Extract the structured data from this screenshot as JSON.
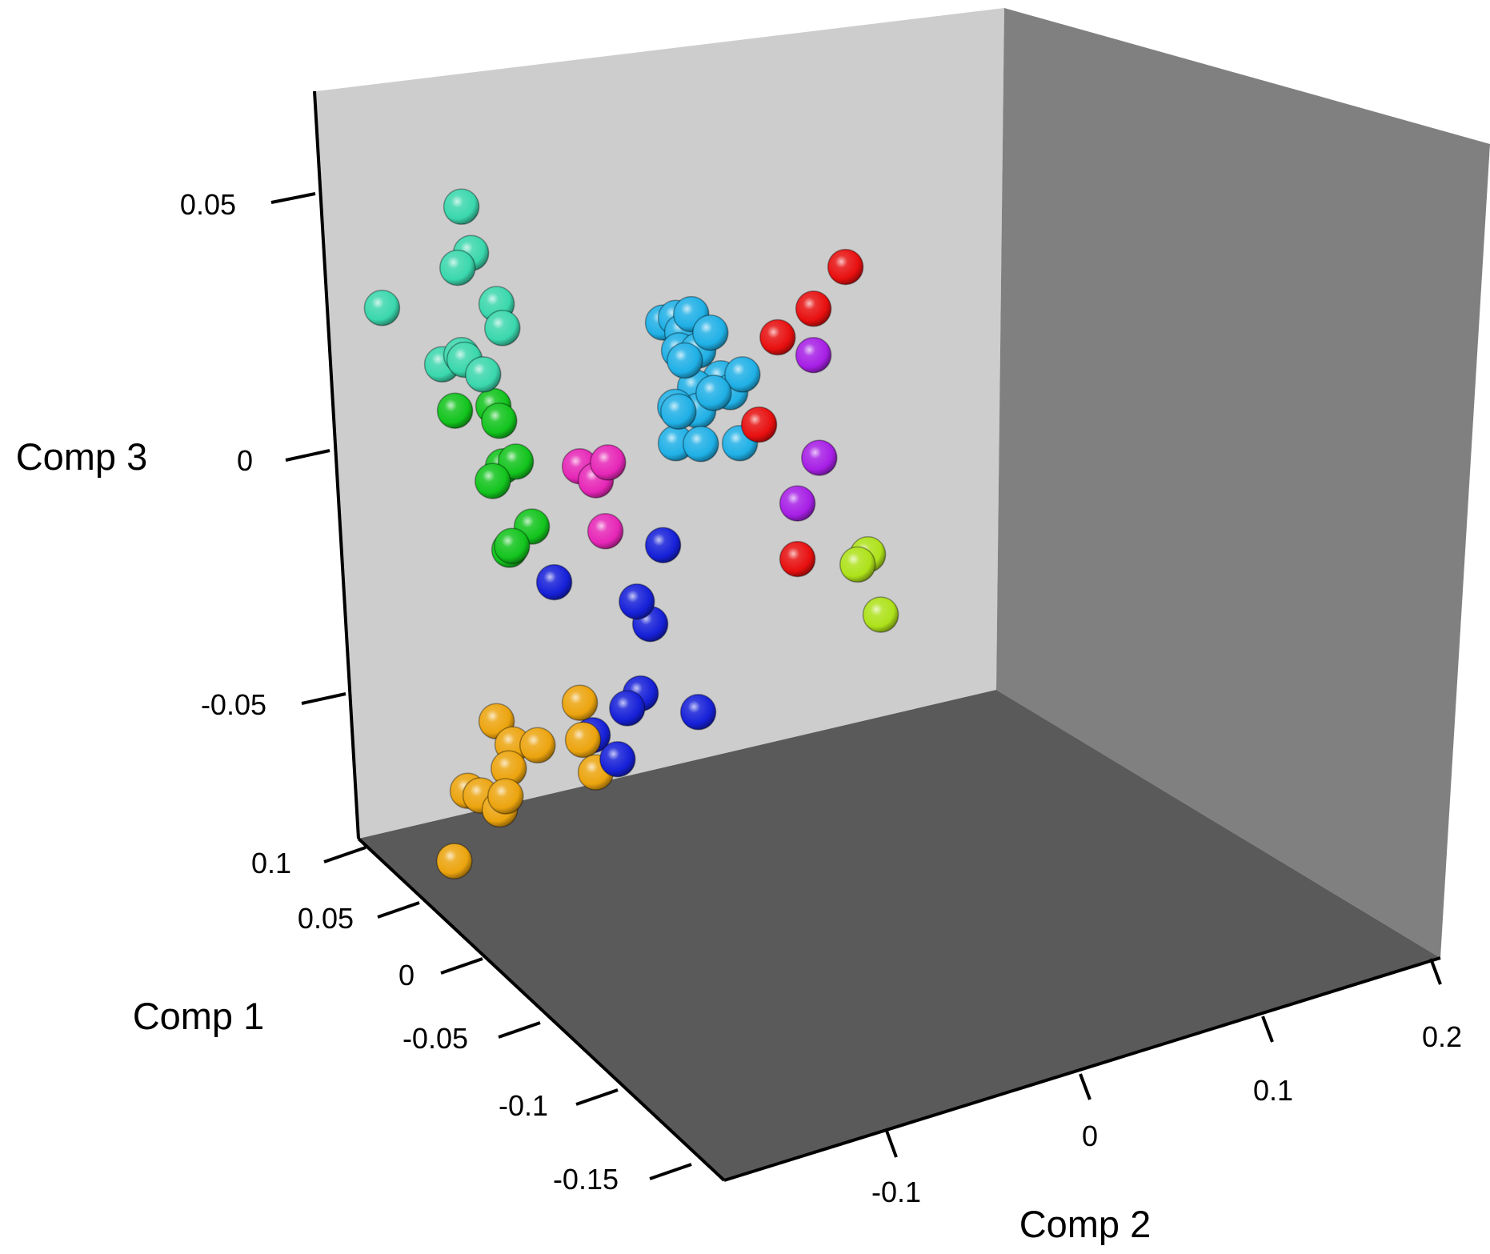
{
  "chart_data": {
    "type": "scatter",
    "title": "",
    "axes": {
      "x": {
        "label": "Comp 2",
        "ticks": [
          -0.1,
          0,
          0.1,
          0.2
        ],
        "tick_labels": [
          "-0.1",
          "0",
          "0.1",
          "0.2"
        ],
        "range": [
          -0.2,
          0.2
        ]
      },
      "y": {
        "label": "Comp 1",
        "ticks": [
          0.1,
          0.05,
          0,
          -0.05,
          -0.1,
          -0.15
        ],
        "tick_labels": [
          "0.1",
          "0.05",
          "0",
          "-0.05",
          "-0.1",
          "-0.15"
        ],
        "range": [
          -0.15,
          0.1
        ]
      },
      "z": {
        "label": "Comp 3",
        "ticks": [
          0.05,
          0,
          -0.05
        ],
        "tick_labels": [
          "0.05",
          "0",
          "-0.05"
        ],
        "range": [
          -0.075,
          0.07
        ]
      }
    },
    "grid": false,
    "legend": "none",
    "panel_colors": {
      "back": "#cdcdcd",
      "side": "#808080",
      "floor": "#5a5a5a"
    },
    "series": [
      {
        "color": "#3ad7ad",
        "points": [
          [
            -0.13,
            -0.13,
            0.057
          ],
          [
            -0.124,
            -0.13,
            0.047
          ],
          [
            -0.132,
            -0.14,
            0.044
          ],
          [
            -0.18,
            -0.12,
            0.035
          ],
          [
            -0.108,
            -0.13,
            0.036
          ],
          [
            -0.104,
            -0.14,
            0.031
          ],
          [
            -0.142,
            -0.13,
            0.023
          ],
          [
            -0.13,
            -0.13,
            0.025
          ],
          [
            -0.116,
            -0.14,
            0.021
          ],
          [
            -0.128,
            -0.13,
            0.024
          ]
        ]
      },
      {
        "color": "#12c41d",
        "points": [
          [
            -0.134,
            -0.13,
            0.013
          ],
          [
            -0.11,
            -0.13,
            0.014
          ],
          [
            -0.106,
            -0.14,
            0.011
          ],
          [
            -0.104,
            -0.13,
            0.001
          ],
          [
            -0.096,
            -0.13,
            0.002
          ],
          [
            -0.11,
            -0.14,
            -0.002
          ],
          [
            -0.086,
            -0.13,
            -0.012
          ],
          [
            -0.098,
            -0.14,
            -0.016
          ],
          [
            -0.1,
            -0.13,
            -0.017
          ]
        ]
      },
      {
        "color": "#1fb0e6",
        "points": [
          [
            -0.004,
            -0.13,
            0.032
          ],
          [
            0.004,
            -0.13,
            0.033
          ],
          [
            0.014,
            -0.14,
            0.034
          ],
          [
            0.008,
            -0.13,
            0.03
          ],
          [
            0.026,
            -0.14,
            0.03
          ],
          [
            0.006,
            -0.13,
            0.026
          ],
          [
            0.018,
            -0.13,
            0.026
          ],
          [
            0.01,
            -0.14,
            0.024
          ],
          [
            0.032,
            -0.13,
            0.02
          ],
          [
            0.046,
            -0.14,
            0.021
          ],
          [
            0.016,
            -0.13,
            0.018
          ],
          [
            0.028,
            -0.14,
            0.017
          ],
          [
            0.038,
            -0.13,
            0.017
          ],
          [
            0.004,
            -0.14,
            0.014
          ],
          [
            0.018,
            -0.13,
            0.013
          ],
          [
            0.006,
            -0.14,
            0.013
          ],
          [
            0.004,
            -0.13,
            0.006
          ],
          [
            0.02,
            -0.14,
            0.006
          ],
          [
            0.044,
            -0.13,
            0.006
          ]
        ]
      },
      {
        "color": "#e626b7",
        "points": [
          [
            -0.056,
            -0.13,
            0.001
          ],
          [
            -0.046,
            -0.13,
            -0.002
          ],
          [
            -0.038,
            -0.14,
            0.002
          ],
          [
            -0.04,
            -0.13,
            -0.013
          ]
        ]
      },
      {
        "color": "#e80f0f",
        "points": [
          [
            0.11,
            -0.13,
            0.044
          ],
          [
            0.09,
            -0.13,
            0.035
          ],
          [
            0.068,
            -0.14,
            0.029
          ],
          [
            0.056,
            -0.13,
            0.01
          ],
          [
            0.08,
            -0.13,
            -0.019
          ]
        ]
      },
      {
        "color": "#a71fe6",
        "points": [
          [
            0.09,
            -0.13,
            0.025
          ],
          [
            0.094,
            -0.14,
            0.003
          ],
          [
            0.08,
            -0.13,
            -0.007
          ]
        ]
      },
      {
        "color": "#aee21a",
        "points": [
          [
            0.124,
            -0.13,
            -0.018
          ],
          [
            0.118,
            -0.14,
            -0.02
          ],
          [
            0.132,
            -0.13,
            -0.031
          ]
        ]
      },
      {
        "color": "#1620d8",
        "points": [
          [
            -0.004,
            -0.13,
            -0.016
          ],
          [
            -0.072,
            -0.13,
            -0.024
          ],
          [
            -0.02,
            -0.14,
            -0.028
          ],
          [
            -0.012,
            -0.13,
            -0.033
          ],
          [
            -0.018,
            -0.13,
            -0.048
          ],
          [
            -0.026,
            -0.14,
            -0.051
          ],
          [
            0.018,
            -0.13,
            -0.052
          ],
          [
            -0.048,
            -0.13,
            -0.057
          ],
          [
            -0.032,
            -0.14,
            -0.062
          ]
        ]
      },
      {
        "color": "#eca40e",
        "points": [
          [
            -0.108,
            -0.13,
            -0.054
          ],
          [
            -0.098,
            -0.13,
            -0.059
          ],
          [
            -0.082,
            -0.14,
            -0.059
          ],
          [
            -0.056,
            -0.13,
            -0.05
          ],
          [
            -0.054,
            -0.13,
            -0.058
          ],
          [
            -0.1,
            -0.14,
            -0.064
          ],
          [
            -0.126,
            -0.13,
            -0.069
          ],
          [
            -0.118,
            -0.13,
            -0.07
          ],
          [
            -0.102,
            -0.14,
            -0.07
          ],
          [
            -0.106,
            -0.13,
            -0.073
          ],
          [
            -0.046,
            -0.13,
            -0.065
          ],
          [
            -0.134,
            -0.14,
            -0.084
          ]
        ]
      }
    ]
  }
}
